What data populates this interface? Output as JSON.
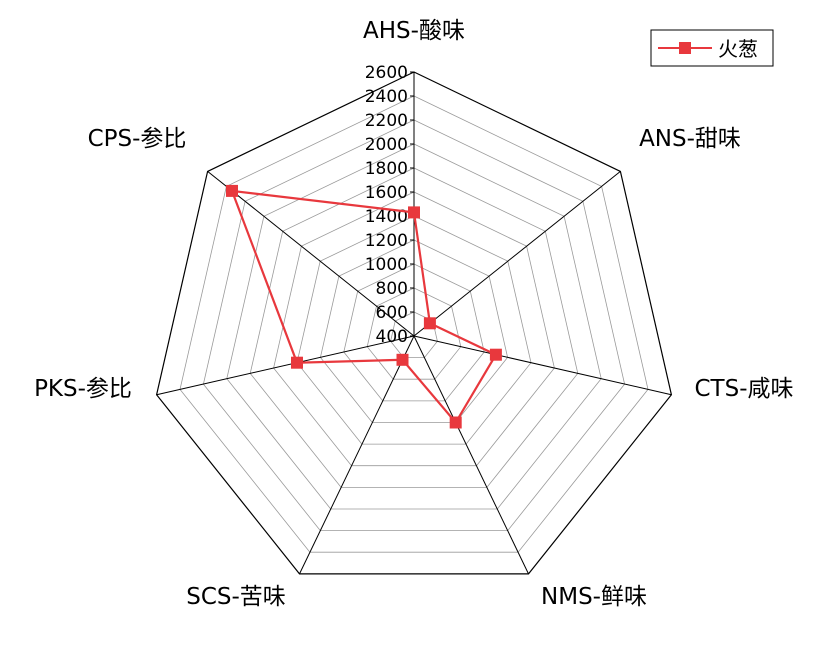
{
  "chart_data": {
    "type": "radar",
    "title": "",
    "axes": [
      "AHS-酸味",
      "ANS-甜味",
      "CTS-咸味",
      "NMS-鲜味",
      "SCS-苦味",
      "PKS-参比",
      "CPS-参比"
    ],
    "radial_ticks": [
      "400",
      "600",
      "800",
      "1000",
      "1200",
      "1400",
      "1600",
      "1800",
      "2000",
      "2200",
      "2400",
      "2600"
    ],
    "rmin": 400,
    "rmax": 2600,
    "tick_step": 200,
    "grid": true,
    "legend_position": "top-right",
    "series": [
      {
        "name": "火葱",
        "color": "#e8383d",
        "marker": "square",
        "values": [
          1430,
          570,
          1100,
          1200,
          620,
          1400,
          2340
        ]
      }
    ]
  }
}
